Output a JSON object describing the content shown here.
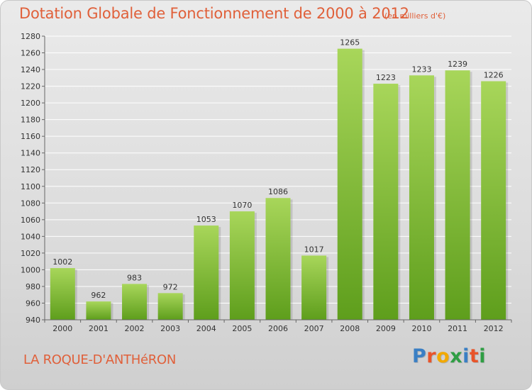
{
  "header": {
    "title": "Dotation Globale de Fonctionnement de 2000 à 2012",
    "unit": "(en milliers d'€)"
  },
  "footer": {
    "commune": "LA ROQUE-D'ANTHéRON",
    "logo": [
      "P",
      "r",
      "o",
      "x",
      "i",
      "t",
      "i"
    ],
    "logo_colors": [
      "#3a7fc4",
      "#e8542a",
      "#f2a900",
      "#2f9e44",
      "#3a7fc4",
      "#e8542a",
      "#2f9e44"
    ]
  },
  "colors": {
    "bar_light": "#a8d65a",
    "bar_dark": "#5e9e1c",
    "title": "#e0603a"
  },
  "chart_data": {
    "type": "bar",
    "title": "Dotation Globale de Fonctionnement de 2000 à 2012",
    "subtitle": "(en milliers d'€)",
    "categories": [
      "2000",
      "2001",
      "2002",
      "2003",
      "2004",
      "2005",
      "2006",
      "2007",
      "2008",
      "2009",
      "2010",
      "2011",
      "2012"
    ],
    "values": [
      1002,
      962,
      983,
      972,
      1053,
      1070,
      1086,
      1017,
      1265,
      1223,
      1233,
      1239,
      1226
    ],
    "data_labels": [
      "1002",
      "962",
      "983",
      "972",
      "1053",
      "1070",
      "1086",
      "1017",
      "1265",
      "1223",
      "1233",
      "1239",
      "1226"
    ],
    "ylim": [
      940,
      1280
    ],
    "yticks": [
      940,
      960,
      980,
      1000,
      1020,
      1040,
      1060,
      1080,
      1100,
      1120,
      1140,
      1160,
      1180,
      1200,
      1220,
      1240,
      1260,
      1280
    ],
    "grid": true,
    "xlabel": "",
    "ylabel": ""
  }
}
